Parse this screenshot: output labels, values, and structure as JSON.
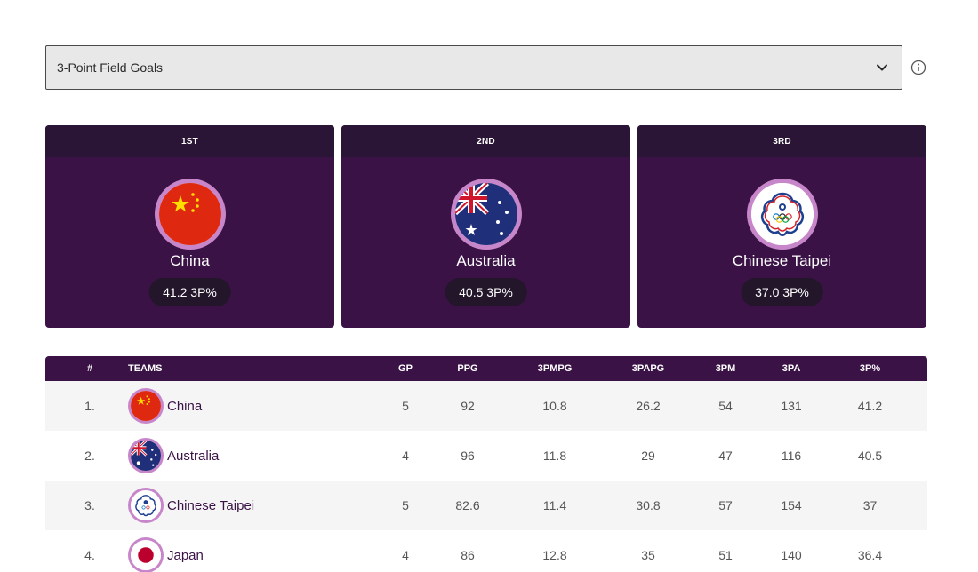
{
  "selector": {
    "selected": "3-Point Field Goals"
  },
  "icons": {
    "dropdown": "chevron-down-icon",
    "info": "info-icon"
  },
  "colors": {
    "card_bg": "#3a1246",
    "card_header": "#2a1536",
    "ring": "#c786c9",
    "pill": "#23162b"
  },
  "podium": [
    {
      "rank": "1ST",
      "country": "China",
      "stat": "41.2 3P%",
      "flag": "china"
    },
    {
      "rank": "2ND",
      "country": "Australia",
      "stat": "40.5 3P%",
      "flag": "australia"
    },
    {
      "rank": "3RD",
      "country": "Chinese Taipei",
      "stat": "37.0 3P%",
      "flag": "chinese-taipei"
    }
  ],
  "table": {
    "headers": {
      "rank": "#",
      "team": "TEAMS",
      "gp": "GP",
      "ppg": "PPG",
      "tpmpg": "3PMPG",
      "tpapg": "3PAPG",
      "tpm": "3PM",
      "tpa": "3PA",
      "tpp": "3P%"
    },
    "rows": [
      {
        "rank": "1.",
        "team": "China",
        "flag": "china",
        "gp": "5",
        "ppg": "92",
        "tpmpg": "10.8",
        "tpapg": "26.2",
        "tpm": "54",
        "tpa": "131",
        "tpp": "41.2"
      },
      {
        "rank": "2.",
        "team": "Australia",
        "flag": "australia",
        "gp": "4",
        "ppg": "96",
        "tpmpg": "11.8",
        "tpapg": "29",
        "tpm": "47",
        "tpa": "116",
        "tpp": "40.5"
      },
      {
        "rank": "3.",
        "team": "Chinese Taipei",
        "flag": "chinese-taipei",
        "gp": "5",
        "ppg": "82.6",
        "tpmpg": "11.4",
        "tpapg": "30.8",
        "tpm": "57",
        "tpa": "154",
        "tpp": "37"
      },
      {
        "rank": "4.",
        "team": "Japan",
        "flag": "japan",
        "gp": "4",
        "ppg": "86",
        "tpmpg": "12.8",
        "tpapg": "35",
        "tpm": "51",
        "tpa": "140",
        "tpp": "36.4"
      }
    ]
  }
}
